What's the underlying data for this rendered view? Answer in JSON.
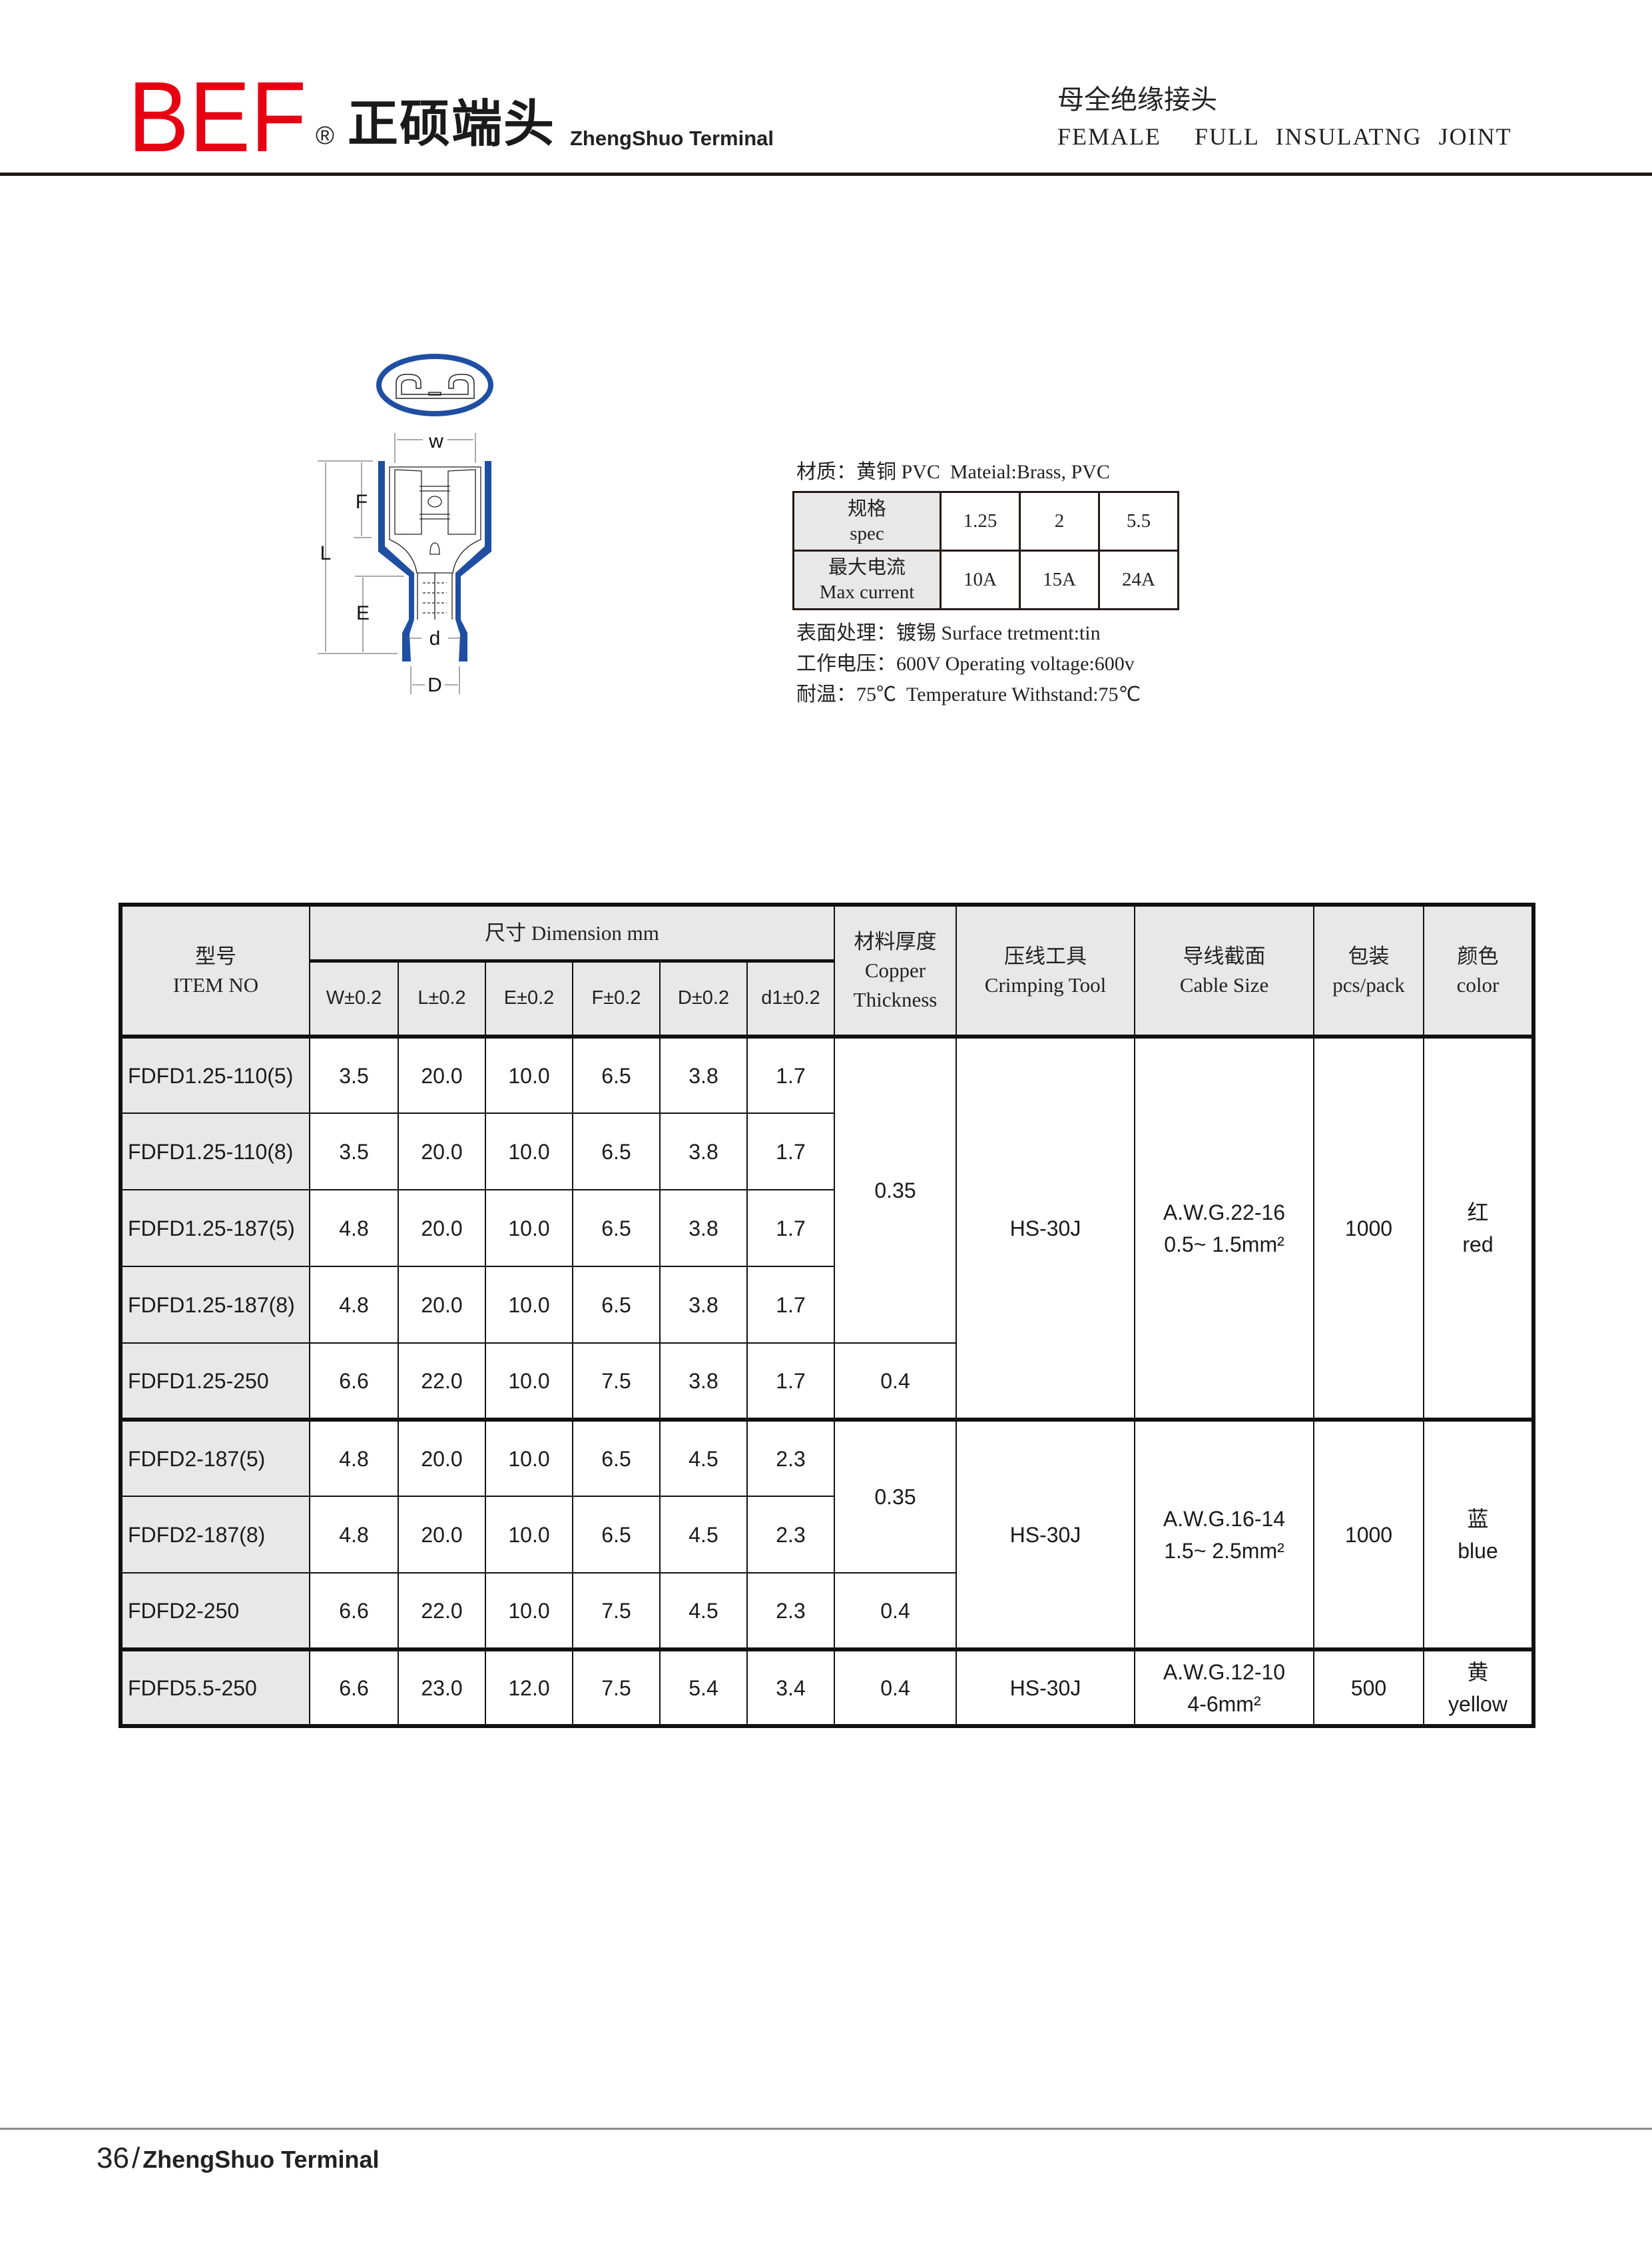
{
  "header": {
    "brand": "BEF",
    "registered": "®",
    "company_cn": "正硕端头",
    "company_en": "ZhengShuo Terminal",
    "title_cn": "母全绝缘接头",
    "title_en": "FEMALE  FULL INSULATNG JOINT",
    "brand_color": "#e60012"
  },
  "drawing": {
    "labels": {
      "w": "w",
      "f": "F",
      "l": "L",
      "e": "E",
      "d": "d",
      "D": "D"
    },
    "insulation_color": "#1f4fa3"
  },
  "spec": {
    "material": "材质：黄铜 PVC  Mateial:Brass, PVC",
    "label_spec_cn": "规格",
    "label_spec_en": "spec",
    "label_current_cn": "最大电流",
    "label_current_en": "Max current",
    "specs": [
      "1.25",
      "2",
      "5.5"
    ],
    "currents": [
      "10A",
      "15A",
      "24A"
    ],
    "surface": "表面处理：镀锡 Surface tretment:tin",
    "voltage": "工作电压：600V Operating voltage:600v",
    "temperature": "耐温：75℃  Temperature Withstand:75℃"
  },
  "table": {
    "headers": {
      "item_cn": "型号",
      "item_en": "ITEM NO",
      "dimension": "尺寸 Dimension mm",
      "dims": [
        "W±0.2",
        "L±0.2",
        "E±0.2",
        "F±0.2",
        "D±0.2",
        "d1±0.2"
      ],
      "thickness_cn": "材料厚度",
      "thickness_en1": "Copper",
      "thickness_en2": "Thickness",
      "tool_cn": "压线工具",
      "tool_en": "Crimping Tool",
      "cable_cn": "导线截面",
      "cable_en": "Cable Size",
      "pack_cn": "包装",
      "pack_en": "pcs/pack",
      "color_cn": "颜色",
      "color_en": "color"
    },
    "groups": [
      {
        "rows": [
          {
            "item": "FDFD1.25-110(5)",
            "dims": [
              "3.5",
              "20.0",
              "10.0",
              "6.5",
              "3.8",
              "1.7"
            ],
            "thickness": "0.35"
          },
          {
            "item": "FDFD1.25-110(8)",
            "dims": [
              "3.5",
              "20.0",
              "10.0",
              "6.5",
              "3.8",
              "1.7"
            ],
            "thickness": "0.35"
          },
          {
            "item": "FDFD1.25-187(5)",
            "dims": [
              "4.8",
              "20.0",
              "10.0",
              "6.5",
              "3.8",
              "1.7"
            ],
            "thickness": "0.35"
          },
          {
            "item": "FDFD1.25-187(8)",
            "dims": [
              "4.8",
              "20.0",
              "10.0",
              "6.5",
              "3.8",
              "1.7"
            ],
            "thickness": "0.35"
          },
          {
            "item": "FDFD1.25-250",
            "dims": [
              "6.6",
              "22.0",
              "10.0",
              "7.5",
              "3.8",
              "1.7"
            ],
            "thickness": "0.4"
          }
        ],
        "tool": "HS-30J",
        "cable_awg": "A.W.G.22-16",
        "cable_mm": "0.5~ 1.5mm²",
        "pack": "1000",
        "color_cn": "红",
        "color_en": "red"
      },
      {
        "rows": [
          {
            "item": "FDFD2-187(5)",
            "dims": [
              "4.8",
              "20.0",
              "10.0",
              "6.5",
              "4.5",
              "2.3"
            ],
            "thickness": "0.35"
          },
          {
            "item": "FDFD2-187(8)",
            "dims": [
              "4.8",
              "20.0",
              "10.0",
              "6.5",
              "4.5",
              "2.3"
            ],
            "thickness": "0.35"
          },
          {
            "item": "FDFD2-250",
            "dims": [
              "6.6",
              "22.0",
              "10.0",
              "7.5",
              "4.5",
              "2.3"
            ],
            "thickness": "0.4"
          }
        ],
        "tool": "HS-30J",
        "cable_awg": "A.W.G.16-14",
        "cable_mm": "1.5~ 2.5mm²",
        "pack": "1000",
        "color_cn": "蓝",
        "color_en": "blue"
      },
      {
        "rows": [
          {
            "item": "FDFD5.5-250",
            "dims": [
              "6.6",
              "23.0",
              "12.0",
              "7.5",
              "5.4",
              "3.4"
            ],
            "thickness": "0.4"
          }
        ],
        "tool": "HS-30J",
        "cable_awg": "A.W.G.12-10",
        "cable_mm": "4-6mm²",
        "pack": "500",
        "color_cn": "黄",
        "color_en": "yellow"
      }
    ]
  },
  "footer": {
    "page": "36",
    "separator": "/",
    "name": "ZhengShuo Terminal"
  }
}
